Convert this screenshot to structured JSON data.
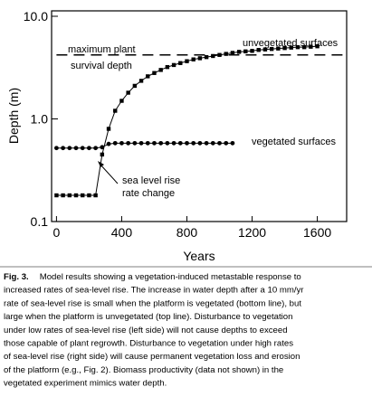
{
  "chart_data": {
    "type": "line",
    "y_scale": "log",
    "x_label": "Years",
    "y_label": "Depth (m)",
    "xlim": [
      -30,
      1780
    ],
    "xticks": [
      0,
      400,
      800,
      1200,
      1600
    ],
    "ylim": [
      0.1,
      10
    ],
    "yticks": [
      0.1,
      {
        "value": 1,
        "label": "1.0"
      },
      {
        "value": 10,
        "label": "10.0"
      }
    ],
    "series": [
      {
        "name": "unvegetated surfaces",
        "color": "#000000",
        "marker": "square",
        "x": [
          0,
          40,
          80,
          120,
          160,
          200,
          240,
          280,
          320,
          360,
          400,
          440,
          480,
          520,
          560,
          600,
          640,
          680,
          720,
          760,
          800,
          840,
          880,
          920,
          960,
          1000,
          1040,
          1080,
          1120,
          1160,
          1200,
          1240,
          1280,
          1320,
          1360,
          1400,
          1440,
          1480,
          1520,
          1560,
          1600
        ],
        "values": [
          0.18,
          0.18,
          0.18,
          0.18,
          0.18,
          0.18,
          0.18,
          0.45,
          0.8,
          1.2,
          1.5,
          1.8,
          2.1,
          2.35,
          2.6,
          2.8,
          3.0,
          3.2,
          3.35,
          3.5,
          3.65,
          3.8,
          3.9,
          4.0,
          4.1,
          4.2,
          4.3,
          4.4,
          4.5,
          4.55,
          4.6,
          4.7,
          4.75,
          4.8,
          4.85,
          4.9,
          4.95,
          5.0,
          5.0,
          5.05,
          5.1
        ]
      },
      {
        "name": "vegetated surfaces",
        "color": "#000000",
        "marker": "circle",
        "x": [
          0,
          40,
          80,
          120,
          160,
          200,
          240,
          280,
          320,
          360,
          400,
          440,
          480,
          520,
          560,
          600,
          640,
          680,
          720,
          760,
          800,
          840,
          880,
          920,
          960,
          1000,
          1040,
          1080
        ],
        "values": [
          0.52,
          0.52,
          0.52,
          0.52,
          0.52,
          0.52,
          0.52,
          0.53,
          0.57,
          0.58,
          0.58,
          0.58,
          0.58,
          0.58,
          0.58,
          0.58,
          0.58,
          0.58,
          0.58,
          0.58,
          0.58,
          0.58,
          0.58,
          0.58,
          0.58,
          0.58,
          0.58,
          0.58
        ]
      }
    ],
    "reference_line": {
      "value": 4.2,
      "label_lines": [
        "maximum plant",
        "survival depth"
      ]
    },
    "annotation_lines": [
      "sea level rise",
      "rate change"
    ]
  },
  "caption": {
    "label": "Fig. 3.",
    "lines": [
      "Model results showing a vegetation-induced metastable response to",
      "increased rates of sea-level rise. The increase in water depth after a 10 mm/yr",
      "rate of sea-level rise is small when the platform is vegetated (bottom line), but",
      "large when the platform is unvegetated (top line). Disturbance to vegetation",
      "under low rates of sea-level rise (left side) will not cause depths to exceed",
      "those capable of plant regrowth. Disturbance to vegetation under high rates",
      "of sea-level rise (right side) will cause permanent vegetation loss and erosion",
      "of the platform (e.g., Fig. 2). Biomass productivity (data not shown) in the",
      "vegetated experiment mimics water depth."
    ]
  }
}
